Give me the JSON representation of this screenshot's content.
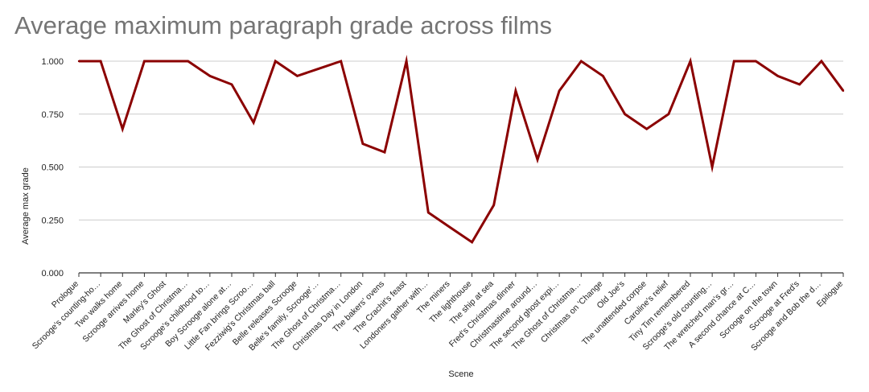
{
  "chart_data": {
    "type": "line",
    "title": "Average maximum paragraph grade across films",
    "xlabel": "Scene",
    "ylabel": "Average max grade",
    "ylim": [
      0,
      1
    ],
    "yticks": [
      "0.000",
      "0.250",
      "0.500",
      "0.750",
      "1.000"
    ],
    "grid": true,
    "line_color": "#8b0000",
    "categories": [
      "Prologue",
      "Scrooge's counting-ho…",
      "Two walks home",
      "Scrooge arrives home",
      "Marley's Ghost",
      "The Ghost of Christma…",
      "Scrooge's childhood to…",
      "Boy Scrooge alone at…",
      "Little Fan brings Scroo…",
      "Fezziwig's Christmas ball",
      "Belle releases Scrooge",
      "Belle's family, Scrooge'…",
      "The Ghost of Christma…",
      "Christmas Day in London",
      "The bakers' ovens",
      "The Crachit's feast",
      "Londoners gather with…",
      "The miners",
      "The lighthouse",
      "The ship at sea",
      "Fred's Christmas dinner",
      "Christmastime around…",
      "The second ghost expi…",
      "The Ghost of Christma…",
      "Christmas on 'Change",
      "Old Joe's",
      "The unattended corpse",
      "Caroline's relief",
      "Tiny Tim remembered",
      "Scrooge's old counting…",
      "The wretched man's gr…",
      "A second chance at C…",
      "Scrooge on the town",
      "Scrooge at Fred's",
      "Scrooge and Bob the d…",
      "Epilogue"
    ],
    "series": [
      {
        "values": [
          1.0,
          1.0,
          0.68,
          1.0,
          1.0,
          1.0,
          0.93,
          0.89,
          0.71,
          1.0,
          0.93,
          0.965,
          1.0,
          0.61,
          0.57,
          1.0,
          0.285,
          0.215,
          0.145,
          0.32,
          0.86,
          0.535,
          0.86,
          1.0,
          0.93,
          0.75,
          0.68,
          0.75,
          1.0,
          0.5,
          1.0,
          1.0,
          0.93,
          0.89,
          1.0,
          0.86
        ]
      }
    ]
  }
}
